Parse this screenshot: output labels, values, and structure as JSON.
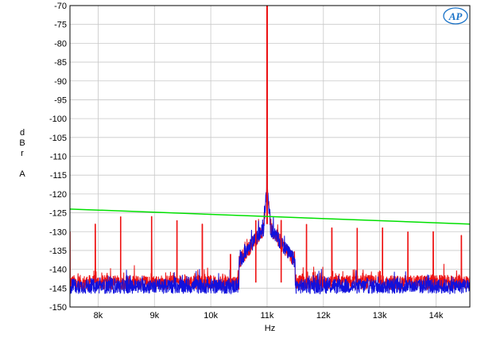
{
  "chart_data": {
    "type": "line",
    "xlabel": "Hz",
    "ylabel_lines": [
      "d",
      "B",
      "r",
      "",
      "A"
    ],
    "logo_text": "AP",
    "xlim": [
      7500,
      14600
    ],
    "ylim": [
      -150,
      -70
    ],
    "x_ticks": [
      {
        "value": 8000,
        "label": "8k"
      },
      {
        "value": 9000,
        "label": "9k"
      },
      {
        "value": 10000,
        "label": "10k"
      },
      {
        "value": 11000,
        "label": "11k"
      },
      {
        "value": 12000,
        "label": "12k"
      },
      {
        "value": 13000,
        "label": "13k"
      },
      {
        "value": 14000,
        "label": "14k"
      }
    ],
    "y_ticks": [
      -70,
      -75,
      -80,
      -85,
      -90,
      -95,
      -100,
      -105,
      -110,
      -115,
      -120,
      -125,
      -130,
      -135,
      -140,
      -145,
      -150
    ],
    "grid": true,
    "series": [
      {
        "color": "#00e000",
        "points": [
          [
            7500,
            -124.0
          ],
          [
            14600,
            -128.0
          ]
        ]
      },
      {
        "color": "#ee1111",
        "noise_floor": -143.5,
        "fundamental": {
          "x": 11000,
          "y": -70
        },
        "spurs": [
          {
            "x": 7500,
            "y": -130
          },
          {
            "x": 7950,
            "y": -128
          },
          {
            "x": 8400,
            "y": -126
          },
          {
            "x": 8950,
            "y": -126
          },
          {
            "x": 9400,
            "y": -127
          },
          {
            "x": 9850,
            "y": -128
          },
          {
            "x": 10350,
            "y": -136
          },
          {
            "x": 10800,
            "y": -127
          },
          {
            "x": 11250,
            "y": -127
          },
          {
            "x": 11700,
            "y": -128
          },
          {
            "x": 12150,
            "y": -129
          },
          {
            "x": 12600,
            "y": -129
          },
          {
            "x": 13050,
            "y": -129
          },
          {
            "x": 13500,
            "y": -130
          },
          {
            "x": 13950,
            "y": -130
          },
          {
            "x": 14450,
            "y": -131
          }
        ]
      },
      {
        "color": "#1111dd",
        "noise_floor": -144.5,
        "fundamental": {
          "x": 11000,
          "y": -70
        },
        "spurs": []
      }
    ]
  }
}
